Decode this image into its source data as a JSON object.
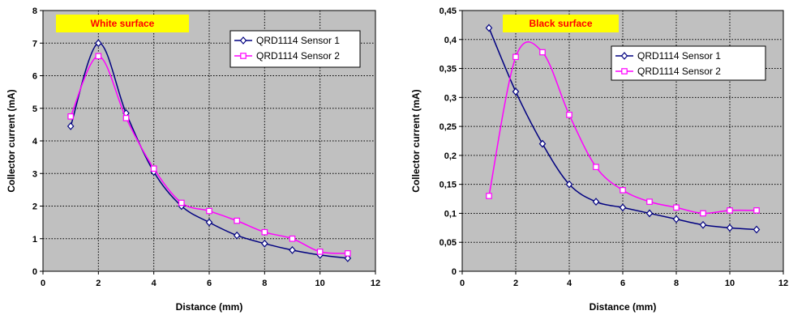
{
  "chart_data": [
    {
      "type": "line",
      "title": "White surface",
      "xlabel": "Distance (mm)",
      "ylabel": "Collector current (mA)",
      "xlim": [
        0,
        12
      ],
      "ylim": [
        0,
        8
      ],
      "x_ticks": [
        0,
        2,
        4,
        6,
        8,
        10,
        12
      ],
      "x_tick_labels": [
        "0",
        "2",
        "4",
        "6",
        "8",
        "10",
        "12"
      ],
      "y_ticks": [
        0,
        1,
        2,
        3,
        4,
        5,
        6,
        7,
        8
      ],
      "y_tick_labels": [
        "0",
        "1",
        "2",
        "3",
        "4",
        "5",
        "6",
        "7",
        "8"
      ],
      "grid": true,
      "legend_position": "top-right",
      "background_color": "#c0c0c0",
      "title_box_color": "#ffff00",
      "title_color": "#ff0000",
      "series": [
        {
          "name": "QRD1114 Sensor 1",
          "color": "#000080",
          "marker": "diamond",
          "x": [
            1,
            2,
            3,
            4,
            5,
            6,
            7,
            8,
            9,
            10,
            11
          ],
          "y": [
            4.45,
            7.0,
            4.85,
            3.05,
            2.0,
            1.5,
            1.1,
            0.85,
            0.65,
            0.5,
            0.4
          ]
        },
        {
          "name": "QRD1114 Sensor 2",
          "color": "#ff00ff",
          "marker": "square",
          "x": [
            1,
            2,
            3,
            4,
            5,
            6,
            7,
            8,
            9,
            10,
            11
          ],
          "y": [
            4.75,
            6.6,
            4.7,
            3.15,
            2.1,
            1.85,
            1.55,
            1.2,
            1.0,
            0.6,
            0.55
          ]
        }
      ]
    },
    {
      "type": "line",
      "title": "Black surface",
      "xlabel": "Distance (mm)",
      "ylabel": "Collector current (mA)",
      "xlim": [
        0,
        12
      ],
      "ylim": [
        0,
        0.45
      ],
      "x_ticks": [
        0,
        2,
        4,
        6,
        8,
        10,
        12
      ],
      "x_tick_labels": [
        "0",
        "2",
        "4",
        "6",
        "8",
        "10",
        "12"
      ],
      "y_ticks": [
        0,
        0.05,
        0.1,
        0.15,
        0.2,
        0.25,
        0.3,
        0.35,
        0.4,
        0.45
      ],
      "y_tick_labels": [
        "0",
        "0,05",
        "0,1",
        "0,15",
        "0,2",
        "0,25",
        "0,3",
        "0,35",
        "0,4",
        "0,45"
      ],
      "grid": true,
      "legend_position": "top-right",
      "background_color": "#c0c0c0",
      "title_box_color": "#ffff00",
      "title_color": "#ff0000",
      "series": [
        {
          "name": "QRD1114 Sensor 1",
          "color": "#000080",
          "marker": "diamond",
          "x": [
            1,
            2,
            3,
            4,
            5,
            6,
            7,
            8,
            9,
            10,
            11
          ],
          "y": [
            0.42,
            0.31,
            0.22,
            0.15,
            0.12,
            0.11,
            0.1,
            0.09,
            0.08,
            0.075,
            0.072
          ]
        },
        {
          "name": "QRD1114 Sensor 2",
          "color": "#ff00ff",
          "marker": "square",
          "x": [
            1,
            2,
            3,
            4,
            5,
            6,
            7,
            8,
            9,
            10,
            11
          ],
          "y": [
            0.13,
            0.37,
            0.378,
            0.27,
            0.18,
            0.14,
            0.12,
            0.11,
            0.1,
            0.105,
            0.105
          ]
        }
      ]
    }
  ]
}
